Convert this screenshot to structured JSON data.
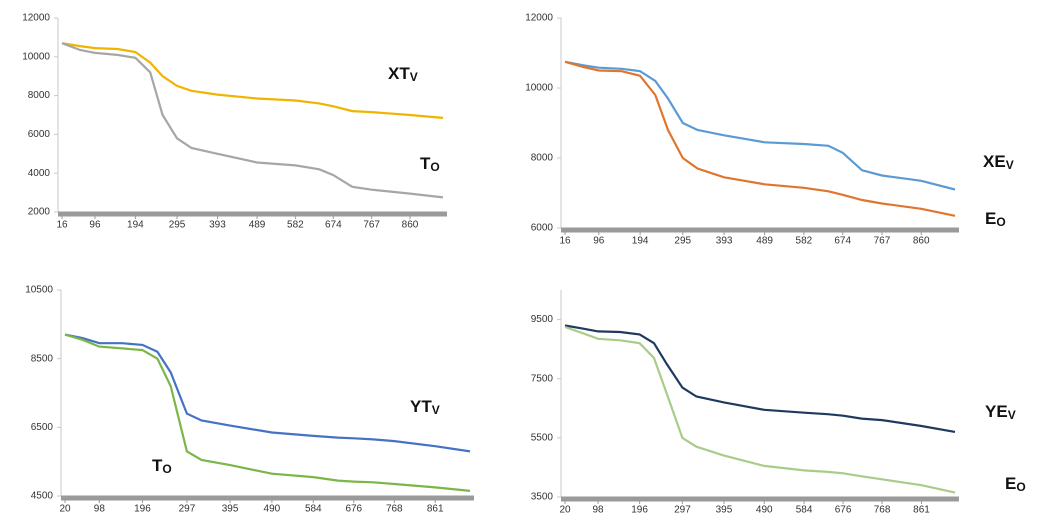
{
  "chart_data": [
    {
      "type": "line",
      "x": [
        16,
        60,
        96,
        150,
        194,
        230,
        260,
        295,
        330,
        393,
        489,
        582,
        640,
        674,
        720,
        767,
        860,
        940
      ],
      "xlim": [
        16,
        940
      ],
      "xticks": [
        16,
        96,
        194,
        295,
        393,
        489,
        582,
        674,
        767,
        860
      ],
      "ylim": [
        2000,
        12000
      ],
      "yticks": [
        2000,
        4000,
        6000,
        8000,
        10000,
        12000
      ],
      "series": [
        {
          "color": "#f0b400",
          "values": [
            10700,
            10550,
            10450,
            10400,
            10250,
            9700,
            9000,
            8500,
            8250,
            8050,
            7850,
            7750,
            7600,
            7450,
            7200,
            7150,
            7000,
            6850
          ]
        },
        {
          "color": "#a6a6a6",
          "values": [
            10700,
            10350,
            10200,
            10100,
            9950,
            9200,
            7000,
            5800,
            5300,
            5000,
            4550,
            4400,
            4200,
            3900,
            3300,
            3150,
            2950,
            2750
          ]
        }
      ],
      "annotations": [
        {
          "text": "XT",
          "sub": "V"
        },
        {
          "text": "T",
          "sub": "O"
        }
      ]
    },
    {
      "type": "line",
      "x": [
        16,
        60,
        96,
        150,
        194,
        230,
        260,
        295,
        330,
        393,
        489,
        582,
        640,
        674,
        720,
        767,
        860,
        940
      ],
      "xlim": [
        16,
        940
      ],
      "xticks": [
        16,
        96,
        194,
        295,
        393,
        489,
        582,
        674,
        767,
        860
      ],
      "ylim": [
        6000,
        12000
      ],
      "yticks": [
        6000,
        8000,
        10000,
        12000
      ],
      "series": [
        {
          "color": "#5b9bd5",
          "values": [
            10750,
            10650,
            10580,
            10550,
            10480,
            10200,
            9700,
            9000,
            8800,
            8650,
            8450,
            8400,
            8350,
            8150,
            7650,
            7500,
            7350,
            7100
          ]
        },
        {
          "color": "#e0762e",
          "values": [
            10750,
            10600,
            10500,
            10480,
            10350,
            9800,
            8800,
            8000,
            7700,
            7450,
            7250,
            7150,
            7050,
            6950,
            6800,
            6700,
            6550,
            6350
          ]
        }
      ],
      "annotations": [
        {
          "text": "XE",
          "sub": "V"
        },
        {
          "text": "E",
          "sub": "O"
        }
      ]
    },
    {
      "type": "line",
      "x": [
        20,
        60,
        98,
        150,
        196,
        230,
        260,
        297,
        330,
        395,
        490,
        584,
        640,
        676,
        720,
        768,
        861,
        940
      ],
      "xlim": [
        20,
        940
      ],
      "xticks": [
        20,
        98,
        196,
        297,
        395,
        490,
        584,
        676,
        768,
        861
      ],
      "ylim": [
        4500,
        10500
      ],
      "yticks": [
        4500,
        6500,
        8500,
        10500
      ],
      "series": [
        {
          "color": "#4472c4",
          "values": [
            9200,
            9100,
            8950,
            8950,
            8900,
            8700,
            8100,
            6900,
            6700,
            6550,
            6350,
            6250,
            6200,
            6180,
            6150,
            6100,
            5950,
            5800
          ]
        },
        {
          "color": "#7ab648",
          "values": [
            9200,
            9050,
            8850,
            8800,
            8750,
            8500,
            7700,
            5800,
            5550,
            5400,
            5150,
            5050,
            4950,
            4920,
            4900,
            4850,
            4750,
            4650
          ]
        }
      ],
      "annotations": [
        {
          "text": "YT",
          "sub": "V"
        },
        {
          "text": "T",
          "sub": "O"
        }
      ]
    },
    {
      "type": "line",
      "x": [
        20,
        60,
        98,
        150,
        196,
        230,
        260,
        297,
        330,
        395,
        490,
        584,
        640,
        676,
        720,
        768,
        861,
        940
      ],
      "xlim": [
        20,
        940
      ],
      "xticks": [
        20,
        98,
        196,
        297,
        395,
        490,
        584,
        676,
        768,
        861
      ],
      "ylim": [
        3500,
        10500
      ],
      "yticks": [
        3500,
        5500,
        7500,
        9500
      ],
      "series": [
        {
          "color": "#1f3a5f",
          "values": [
            9300,
            9200,
            9100,
            9080,
            9000,
            8700,
            8000,
            7200,
            6900,
            6700,
            6450,
            6350,
            6300,
            6250,
            6150,
            6100,
            5900,
            5700
          ]
        },
        {
          "color": "#a9cc8a",
          "values": [
            9250,
            9050,
            8850,
            8800,
            8700,
            8200,
            7000,
            5500,
            5200,
            4900,
            4550,
            4400,
            4350,
            4300,
            4200,
            4100,
            3900,
            3650
          ]
        }
      ],
      "annotations": [
        {
          "text": "YE",
          "sub": "V"
        },
        {
          "text": "E",
          "sub": "O"
        }
      ]
    }
  ]
}
